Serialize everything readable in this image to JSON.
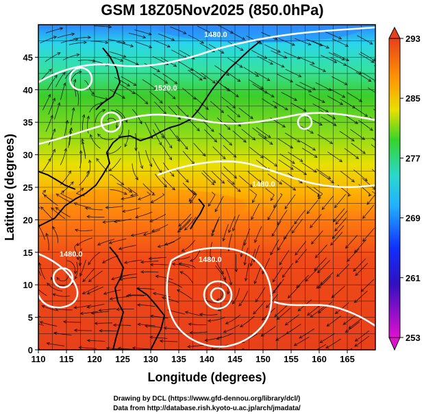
{
  "title": "GSM 18Z05Nov2025 (850.0hPa)",
  "xlabel": "Longitude (degrees)",
  "ylabel": "Latitude (degrees)",
  "x_ticks": [
    "110",
    "115",
    "120",
    "125",
    "130",
    "135",
    "140",
    "145",
    "150",
    "155",
    "160",
    "165"
  ],
  "y_ticks": [
    "0",
    "5",
    "10",
    "15",
    "20",
    "25",
    "30",
    "35",
    "40",
    "45"
  ],
  "colorbar_ticks": [
    "293",
    "285",
    "277",
    "269",
    "261",
    "253"
  ],
  "contour_labels": [
    "1480.0",
    "1520.0",
    "1480.0",
    "1480.0",
    "1480.0"
  ],
  "credit_line1": "Drawing by DCL (https://www.gfd-dennou.org/library/dcl/)",
  "credit_line2": "Data from http://database.rish.kyoto-u.ac.jp/arch/jmadata/",
  "map": {
    "lon_range": [
      110,
      170
    ],
    "lat_range": [
      0,
      50
    ],
    "grid": true,
    "shaded_field": "temperature (K)",
    "color_range": [
      253,
      293
    ],
    "overlay": "wind streamlines",
    "contours": "geopotential height (white)"
  },
  "colors": {
    "cold": "#1e3cff",
    "cyan": "#22d0e0",
    "green": "#2fc82a",
    "yellow": "#e8e000",
    "orange": "#ff7a00",
    "red": "#e8401a",
    "magenta": "#e000e0"
  }
}
